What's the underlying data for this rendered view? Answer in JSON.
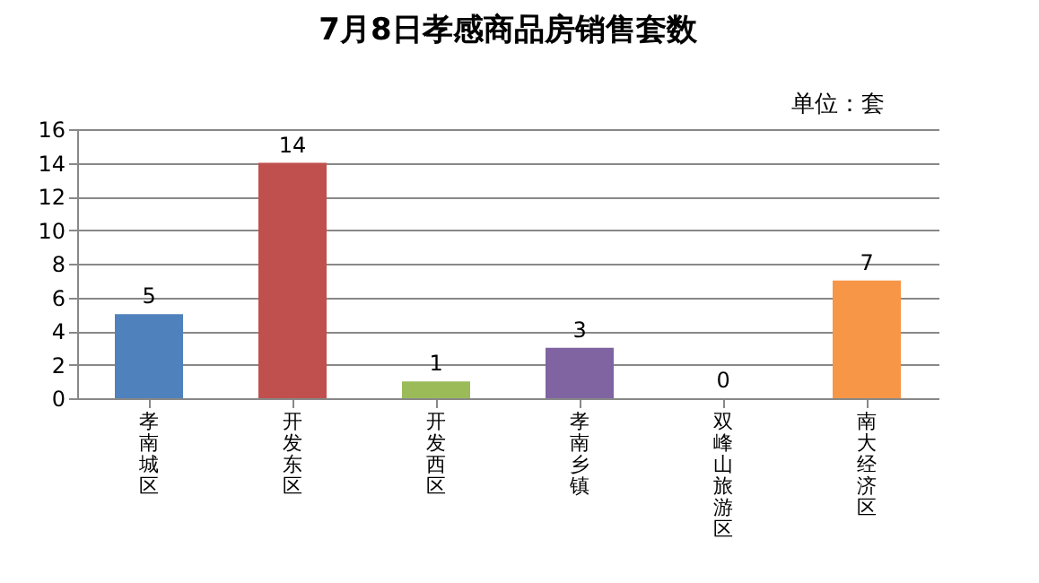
{
  "chart_data": {
    "type": "bar",
    "title": "7月8日孝感商品房销售套数",
    "annotations": [
      "单位：套"
    ],
    "categories": [
      "孝南城区",
      "开发东区",
      "开发西区",
      "孝南乡镇",
      "双峰山旅游区",
      "南大经济区"
    ],
    "values": [
      5,
      14,
      1,
      3,
      0,
      7
    ],
    "colors": [
      "#4f81bd",
      "#c0504d",
      "#9bbb59",
      "#8064a2",
      "#4bacc6",
      "#f79646"
    ],
    "ylim": [
      0,
      16
    ],
    "yticks": [
      0,
      2,
      4,
      6,
      8,
      10,
      12,
      14,
      16
    ],
    "grid": "y",
    "data_labels": true
  }
}
